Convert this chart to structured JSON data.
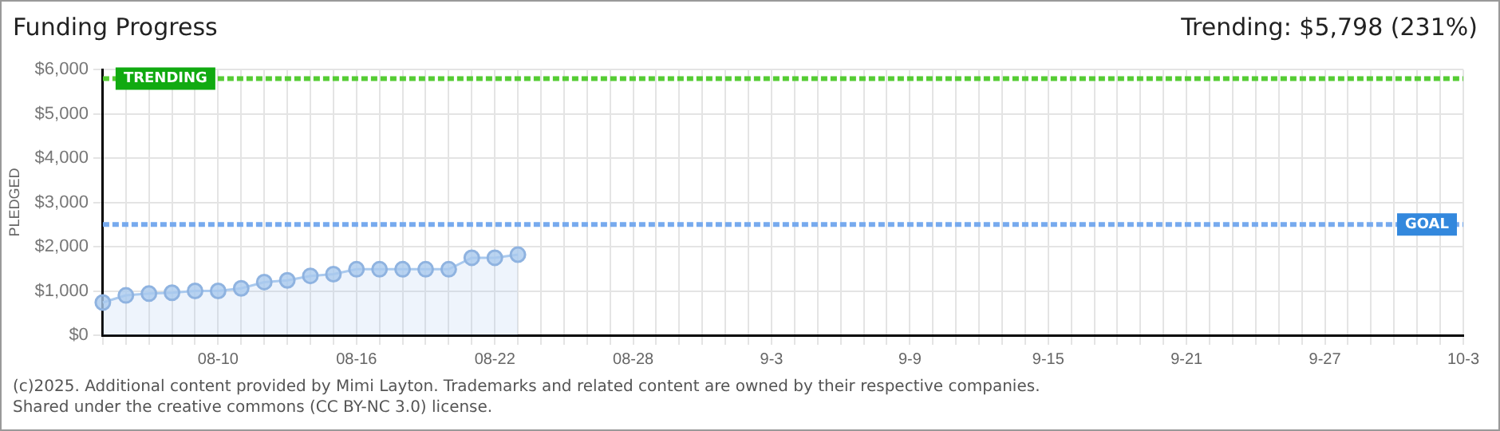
{
  "chart_data": {
    "type": "area",
    "title": "Funding Progress",
    "ylabel": "PLEDGED",
    "categories": [
      null,
      null,
      null,
      null,
      null,
      "08-10",
      null,
      null,
      null,
      null,
      null,
      "08-16",
      null,
      null,
      null,
      null,
      null,
      "08-22",
      null,
      null,
      null,
      null,
      null,
      "08-28",
      null,
      null,
      null,
      null,
      null,
      "9-3",
      null,
      null,
      null,
      null,
      null,
      "9-9",
      null,
      null,
      null,
      null,
      null,
      "9-15",
      null,
      null,
      null,
      null,
      null,
      "9-21",
      null,
      null,
      null,
      null,
      null,
      "9-27",
      null,
      null,
      null,
      null,
      null,
      "10-3"
    ],
    "series": [
      {
        "color": "#a9c9ee",
        "values": [
          740,
          900,
          940,
          960,
          1000,
          1000,
          1060,
          1200,
          1240,
          1340,
          1380,
          1490,
          1490,
          1490,
          1490,
          1490,
          1750,
          1750,
          1820,
          null,
          null,
          null,
          null,
          null,
          null,
          null,
          null,
          null,
          null,
          null,
          null,
          null,
          null,
          null,
          null,
          null,
          null,
          null,
          null,
          null,
          null,
          null,
          null,
          null,
          null,
          null,
          null,
          null,
          null,
          null,
          null,
          null,
          null,
          null,
          null,
          null,
          null,
          null,
          null,
          null
        ]
      }
    ],
    "ylim": [
      0,
      6000
    ],
    "yticks": [
      {
        "value": 0,
        "label": "$0"
      },
      {
        "value": 1000,
        "label": "$1,000"
      },
      {
        "value": 2000,
        "label": "$2,000"
      },
      {
        "value": 3000,
        "label": "$3,000"
      },
      {
        "value": 4000,
        "label": "$4,000"
      },
      {
        "value": 5000,
        "label": "$5,000"
      },
      {
        "value": 6000,
        "label": "$6,000"
      }
    ],
    "grid": true,
    "marker": "circle",
    "legend": false,
    "ref_lines": [
      {
        "axis": "y",
        "value": 5798,
        "label": "TRENDING",
        "color": "#55cc33",
        "line_style": "dashed"
      },
      {
        "axis": "y",
        "value": 2500,
        "label": "GOAL",
        "color": "#77aaee",
        "line_style": "dashed"
      }
    ],
    "annotations": [
      "Trending: $5,798 (231%)",
      "(c)2025. Additional content provided by Mimi Layton. Trademarks and related content are owned by their respective companies.",
      "Shared under the creative commons (CC BY-NC 3.0) license."
    ]
  }
}
